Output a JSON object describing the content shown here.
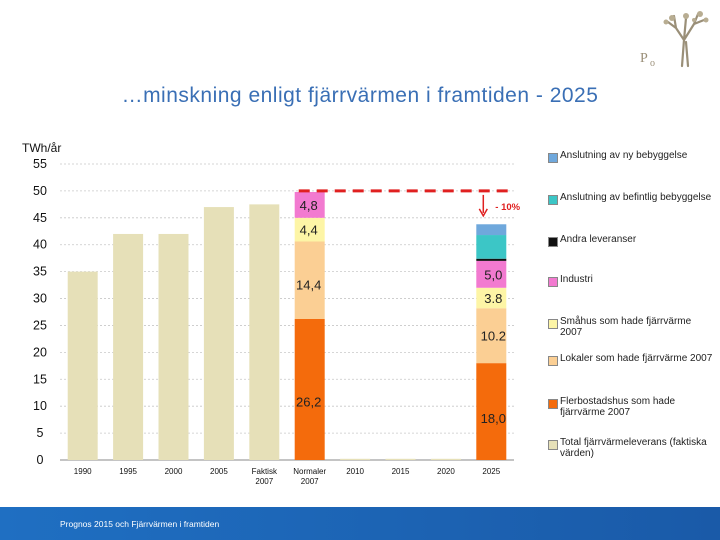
{
  "slide": {
    "title": "…minskning enligt fjärrvärmen i framtiden - 2025",
    "footer": "Prognos 2015 och Fjärrvärmen i framtiden"
  },
  "chart_data": {
    "type": "bar",
    "ylabel": "TWh/år",
    "ylim": [
      0,
      55
    ],
    "yticks": [
      0,
      5,
      10,
      15,
      20,
      25,
      30,
      35,
      40,
      45,
      50,
      55
    ],
    "categories": [
      {
        "label": "1990",
        "sub": ""
      },
      {
        "label": "1995",
        "sub": ""
      },
      {
        "label": "2000",
        "sub": ""
      },
      {
        "label": "2005",
        "sub": ""
      },
      {
        "label": "Faktisk",
        "sub": "2007"
      },
      {
        "label": "Normaler",
        "sub": "2007"
      },
      {
        "label": "2010",
        "sub": ""
      },
      {
        "label": "2015",
        "sub": ""
      },
      {
        "label": "2020",
        "sub": ""
      },
      {
        "label": "2025",
        "sub": ""
      }
    ],
    "total_values": [
      35,
      42,
      42,
      47,
      47.5,
      null,
      0,
      0,
      0,
      null
    ],
    "stacks": {
      "Normaler 2007": [
        {
          "series": "Flerbostadshus som hade fjärrvärme 2007",
          "value": 26.2,
          "label": "26,2"
        },
        {
          "series": "Lokaler som hade fjärrvärme 2007",
          "value": 14.4,
          "label": "14,4"
        },
        {
          "series": "Småhus som hade fjärrvärme 2007",
          "value": 4.4,
          "label": "4,4"
        },
        {
          "series": "Industri",
          "value": 4.8,
          "label": "4,8"
        }
      ],
      "2025": [
        {
          "series": "Flerbostadshus som hade fjärrvärme 2007",
          "value": 18.0,
          "label": "18,0"
        },
        {
          "series": "Lokaler som hade fjärrvärme 2007",
          "value": 10.2,
          "label": "10.2"
        },
        {
          "series": "Småhus som hade fjärrvärme 2007",
          "value": 3.8,
          "label": "3.8"
        },
        {
          "series": "Industri",
          "value": 5.0,
          "label": "5,0"
        },
        {
          "series": "Andra leveranser",
          "value": 0.4,
          "label": ""
        },
        {
          "series": "Anslutning av befintlig bebyggelse",
          "value": 4.4,
          "label": ""
        },
        {
          "series": "Anslutning av ny bebyggelse",
          "value": 2.0,
          "label": ""
        }
      ]
    },
    "reference_line": {
      "value": 50,
      "annotation": "- 10%"
    },
    "legend": [
      {
        "name": "Anslutning av ny bebyggelse",
        "color": "#6fa8dc"
      },
      {
        "name": "Anslutning av befintlig bebyggelse",
        "color": "#3cc6c6"
      },
      {
        "name": "Andra leveranser",
        "color": "#111111"
      },
      {
        "name": "Industri",
        "color": "#f27ad0"
      },
      {
        "name": "Småhus som hade fjärrvärme 2007",
        "color": "#fdf5a6"
      },
      {
        "name": "Lokaler som hade fjärrvärme 2007",
        "color": "#fbcf94"
      },
      {
        "name": "Flerbostadshus som hade fjärrvärme 2007",
        "color": "#f46b0c"
      },
      {
        "name": "Total fjärrvärmeleverans (faktiska värden)",
        "color": "#e6e0b8"
      }
    ],
    "colors": {
      "total": "#e6e0b8",
      "reference_line": "#e02020",
      "grid": "#c8c8c8"
    }
  }
}
